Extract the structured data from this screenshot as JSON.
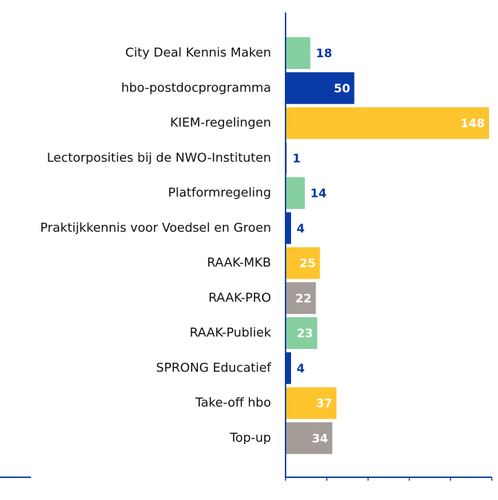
{
  "chart_data": {
    "type": "bar",
    "orientation": "horizontal",
    "categories": [
      "City Deal Kennis Maken",
      "hbo-postdocprogramma",
      "KIEM-regelingen",
      "Lectorposities bij de NWO-Instituten",
      "Platformregeling",
      "Praktijkkennis voor Voedsel en Groen",
      "RAAK-MKB",
      "RAAK-PRO",
      "RAAK-Publiek",
      "SPRONG Educatief",
      "Take-off hbo",
      "Top-up"
    ],
    "values": [
      18,
      50,
      148,
      1,
      14,
      4,
      25,
      22,
      23,
      4,
      37,
      34
    ],
    "colors": [
      "#86cfa0",
      "#0a3aa8",
      "#fdc42d",
      "#a49c96",
      "#86cfa0",
      "#0a3aa8",
      "#fdc42d",
      "#a49c96",
      "#86cfa0",
      "#0a3aa8",
      "#fdc42d",
      "#a49c96"
    ],
    "xlim": [
      0,
      150
    ],
    "xticks": [
      0,
      30,
      60,
      90,
      120,
      150
    ]
  }
}
